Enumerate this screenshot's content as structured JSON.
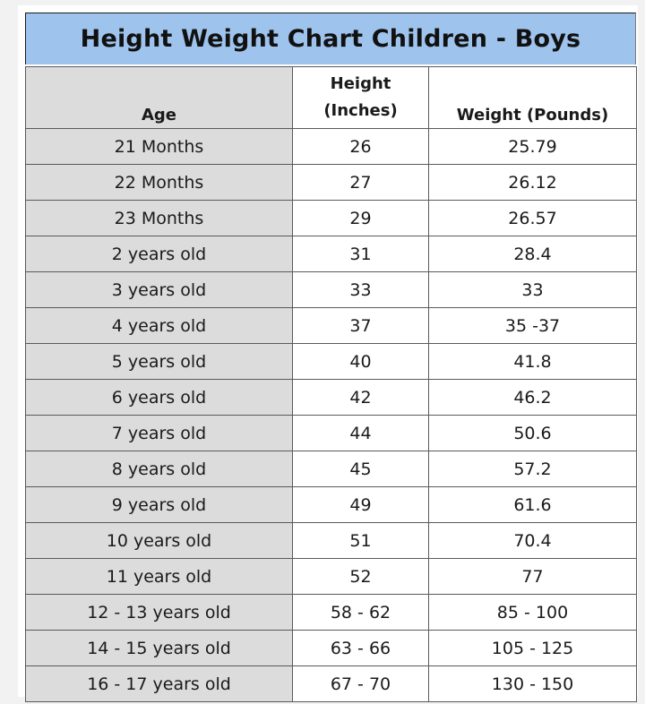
{
  "chart_data": {
    "type": "table",
    "title": "Height Weight Chart Children - Boys",
    "columns": {
      "age": "Age",
      "height_line1": "Height",
      "height_line2": "(Inches)",
      "weight": "Weight (Pounds)"
    },
    "rows": [
      {
        "age": "21 Months",
        "height": "26",
        "weight": "25.79"
      },
      {
        "age": "22 Months",
        "height": "27",
        "weight": "26.12"
      },
      {
        "age": "23 Months",
        "height": "29",
        "weight": "26.57"
      },
      {
        "age": "2 years old",
        "height": "31",
        "weight": "28.4"
      },
      {
        "age": "3 years old",
        "height": "33",
        "weight": "33"
      },
      {
        "age": "4 years old",
        "height": "37",
        "weight": "35 -37"
      },
      {
        "age": "5 years old",
        "height": "40",
        "weight": "41.8"
      },
      {
        "age": "6 years old",
        "height": "42",
        "weight": "46.2"
      },
      {
        "age": "7 years old",
        "height": "44",
        "weight": "50.6"
      },
      {
        "age": "8 years old",
        "height": "45",
        "weight": "57.2"
      },
      {
        "age": "9 years old",
        "height": "49",
        "weight": "61.6"
      },
      {
        "age": "10 years old",
        "height": "51",
        "weight": "70.4"
      },
      {
        "age": "11 years old",
        "height": "52",
        "weight": "77"
      },
      {
        "age": "12 - 13 years old",
        "height": "58 - 62",
        "weight": "85 - 100"
      },
      {
        "age": "14 - 15 years old",
        "height": "63 - 66",
        "weight": "105 - 125"
      },
      {
        "age": "16 - 17 years old",
        "height": "67 - 70",
        "weight": "130 - 150"
      }
    ]
  },
  "colors": {
    "title_background": "#9ec3ec",
    "age_column_background": "#dcdcdc",
    "grid_line": "#5a5a5a"
  }
}
